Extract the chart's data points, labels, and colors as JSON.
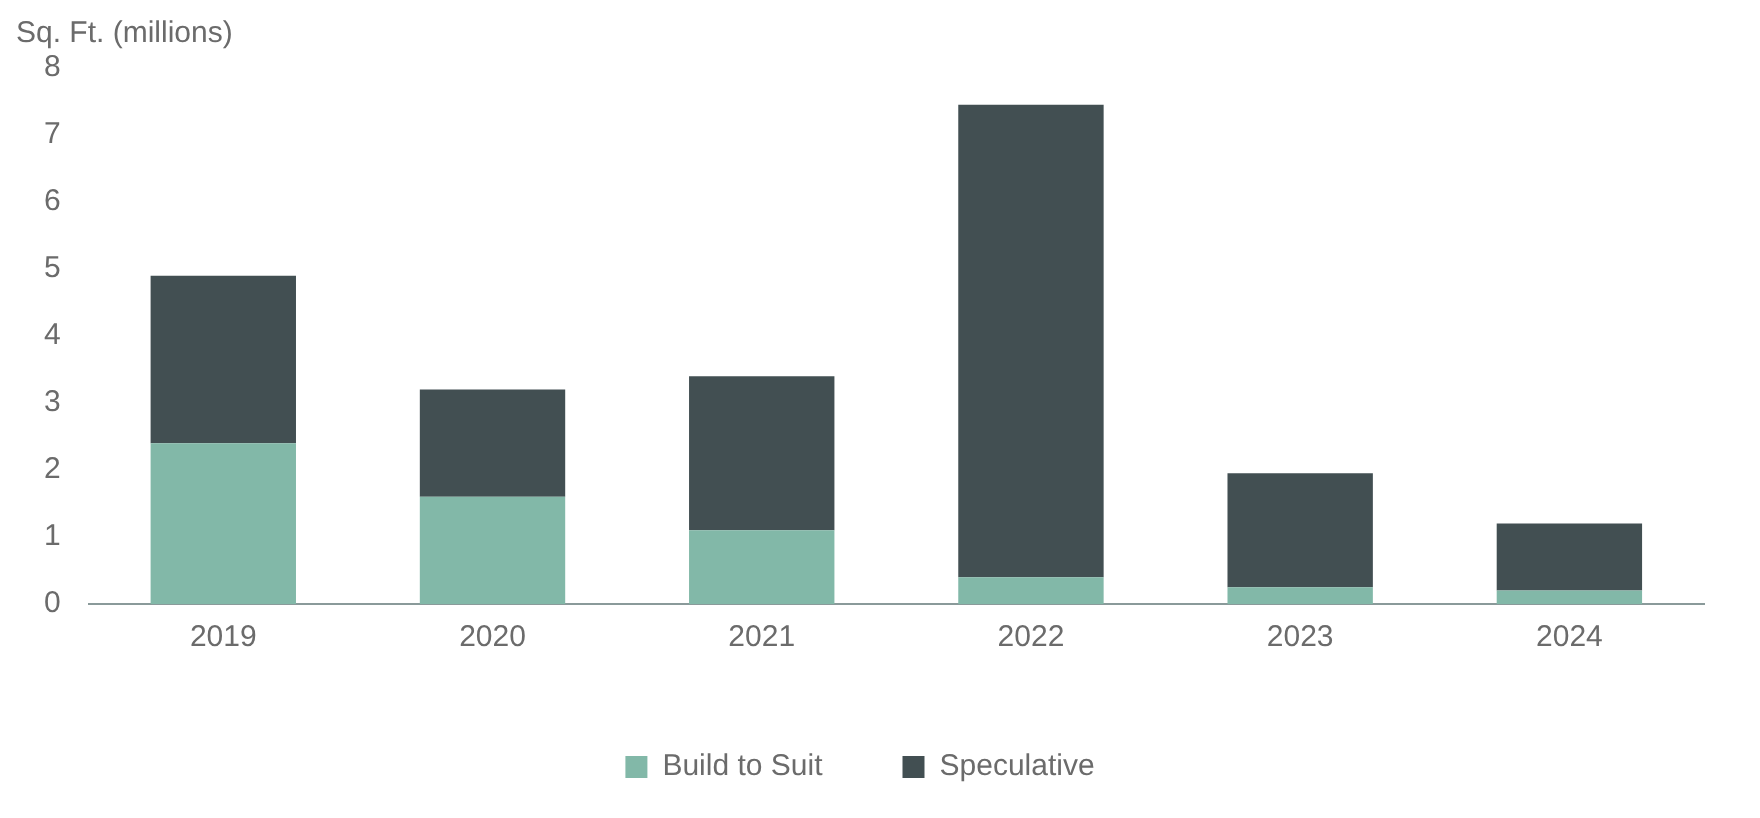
{
  "chart_data": {
    "type": "bar",
    "ylabel": "Sq. Ft. (millions)",
    "categories": [
      "2019",
      "2020",
      "2021",
      "2022",
      "2023",
      "2024"
    ],
    "stacked": true,
    "ylim": [
      0,
      8
    ],
    "yticks": [
      0,
      1,
      2,
      3,
      4,
      5,
      6,
      7,
      8
    ],
    "grid": false,
    "legend": "bottom",
    "series": [
      {
        "name": "Build to Suit",
        "color": "#82b8a8",
        "values": [
          2.4,
          1.6,
          1.1,
          0.4,
          0.25,
          0.2
        ]
      },
      {
        "name": "Speculative",
        "color": "#424f52",
        "values": [
          2.5,
          1.6,
          2.3,
          7.05,
          1.7,
          1.0
        ]
      }
    ]
  }
}
